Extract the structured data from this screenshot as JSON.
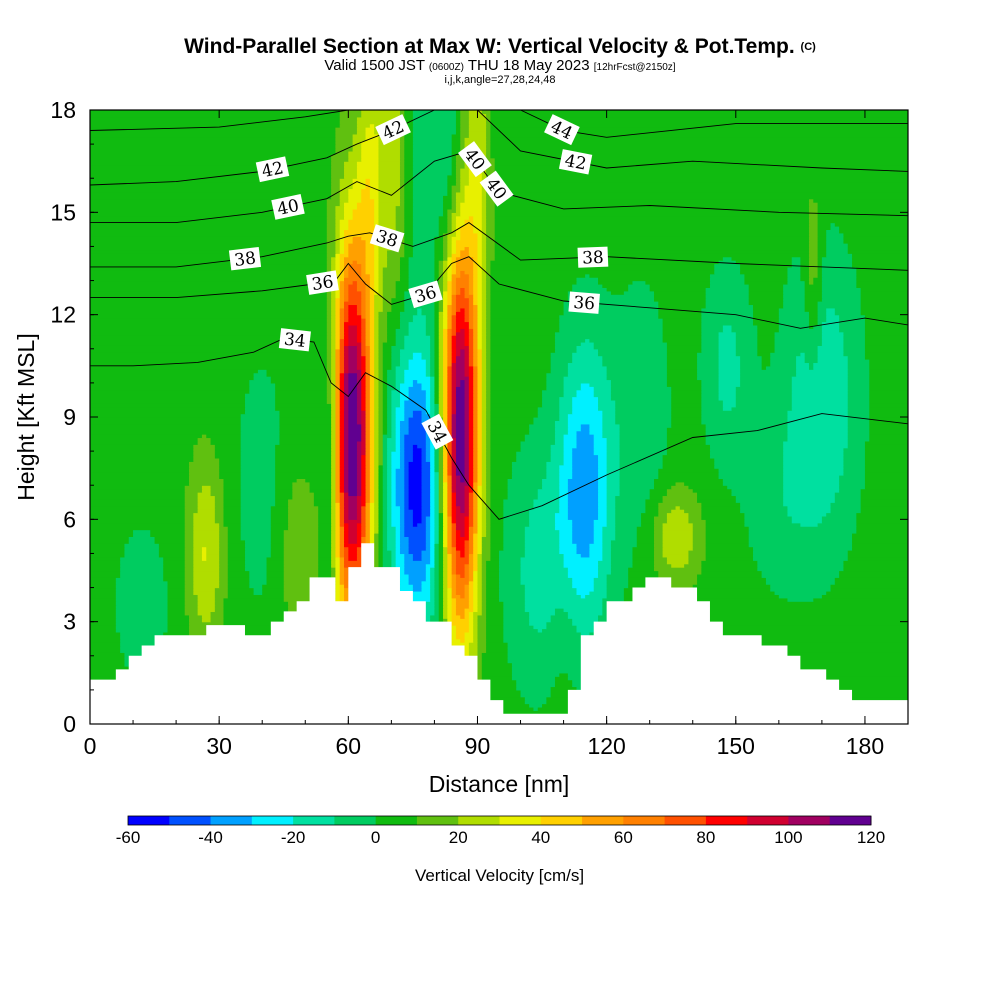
{
  "title": {
    "main": "Wind-Parallel Section at Max W: Vertical Velocity & Pot.Temp.",
    "main_mark": "(C)",
    "valid_a": "Valid 1500 JST",
    "valid_utc": "(0600Z)",
    "valid_b": "THU 18 May 2023",
    "fcst": "[12hrFcst@2150z]",
    "indices": "i,j,k,angle=27,28,24,48"
  },
  "chart_data": {
    "type": "heatmap",
    "xlabel": "Distance [nm]",
    "ylabel": "Height [Kft MSL]",
    "xlim": [
      0,
      190
    ],
    "ylim": [
      0,
      18
    ],
    "xticks": [
      "0",
      "30",
      "60",
      "90",
      "120",
      "150",
      "180"
    ],
    "xtick_values": [
      0,
      30,
      60,
      90,
      120,
      150,
      180
    ],
    "yticks": [
      "0",
      "3",
      "6",
      "9",
      "12",
      "15",
      "18"
    ],
    "ytick_values": [
      0,
      3,
      6,
      9,
      12,
      15,
      18
    ],
    "colorbar": {
      "label": "Vertical Velocity [cm/s]",
      "tick_labels": [
        "-60",
        "-40",
        "-20",
        "0",
        "20",
        "40",
        "60",
        "80",
        "100",
        "120"
      ],
      "tick_values": [
        -60,
        -40,
        -20,
        0,
        20,
        40,
        60,
        80,
        100,
        120
      ],
      "bins": [
        -60,
        -50,
        -40,
        -30,
        -20,
        -10,
        0,
        10,
        20,
        30,
        40,
        50,
        60,
        70,
        80,
        90,
        100,
        110,
        120
      ],
      "colors": [
        "#0000ff",
        "#0050ff",
        "#00a0ff",
        "#00f0ff",
        "#00e0a0",
        "#00cc60",
        "#10bb10",
        "#60c010",
        "#b0dd00",
        "#e8f000",
        "#ffd000",
        "#ffa000",
        "#ff8000",
        "#ff5000",
        "#ff0000",
        "#d00030",
        "#a00060",
        "#600090"
      ]
    },
    "terrain_profile": {
      "distance_nm": [
        0,
        6,
        6,
        9,
        9,
        12,
        12,
        15,
        15,
        21,
        21,
        27,
        27,
        36,
        36,
        42,
        42,
        45,
        45,
        48,
        48,
        51,
        51,
        54,
        54,
        57,
        57,
        60,
        60,
        63,
        63,
        66,
        66,
        72,
        72,
        75,
        75,
        78,
        78,
        81,
        81,
        84,
        84,
        87,
        87,
        90,
        90,
        93,
        93,
        96,
        96,
        99,
        99,
        111,
        111,
        114,
        114,
        117,
        117,
        120,
        120,
        126,
        126,
        129,
        129,
        135,
        135,
        141,
        141,
        144,
        144,
        147,
        147,
        150,
        150,
        156,
        156,
        162,
        162,
        165,
        165,
        171,
        171,
        174,
        174,
        177,
        177,
        180,
        180,
        190
      ],
      "height_kft": [
        1.3,
        1.3,
        1.6,
        1.6,
        2.0,
        2.0,
        2.3,
        2.3,
        2.6,
        2.6,
        2.6,
        2.6,
        2.9,
        2.9,
        2.6,
        2.6,
        3.0,
        3.0,
        3.3,
        3.3,
        3.6,
        3.6,
        4.3,
        4.3,
        4.3,
        4.3,
        3.6,
        3.6,
        4.6,
        4.6,
        5.3,
        5.3,
        4.6,
        4.6,
        3.9,
        3.9,
        3.6,
        3.6,
        3.0,
        3.0,
        3.0,
        3.0,
        2.3,
        2.3,
        2.0,
        2.0,
        1.3,
        1.3,
        0.7,
        0.7,
        0.3,
        0.3,
        0.3,
        0.3,
        1.0,
        1.0,
        2.6,
        2.6,
        3.0,
        3.0,
        3.6,
        3.6,
        4.0,
        4.0,
        4.3,
        4.3,
        4.0,
        4.0,
        3.6,
        3.6,
        3.0,
        3.0,
        2.6,
        2.6,
        2.6,
        2.6,
        2.3,
        2.3,
        2.0,
        2.0,
        1.6,
        1.6,
        1.3,
        1.3,
        1.0,
        1.0,
        0.7,
        0.7,
        0.7,
        0.7
      ]
    },
    "velocity_field": [
      {
        "x": 61,
        "y": 8.5,
        "w": 118,
        "sx": 3.2,
        "sy": 4.0
      },
      {
        "x": 86,
        "y": 8.5,
        "w": 118,
        "sx": 3.0,
        "sy": 4.0
      },
      {
        "x": 76,
        "y": 7.0,
        "w": -60,
        "sx": 4.5,
        "sy": 3.0
      },
      {
        "x": 56,
        "y": 8.0,
        "w": -25,
        "sx": 1.4,
        "sy": 3.0
      },
      {
        "x": 75,
        "y": 16.5,
        "w": -18,
        "sx": 3.5,
        "sy": 2.5
      },
      {
        "x": 83,
        "y": 16.5,
        "w": -18,
        "sx": 2.5,
        "sy": 2.5
      },
      {
        "x": 71,
        "y": 16.5,
        "w": 28,
        "sx": 3.0,
        "sy": 3.0
      },
      {
        "x": 65,
        "y": 16.0,
        "w": 22,
        "sx": 2.0,
        "sy": 2.5
      },
      {
        "x": 90,
        "y": 16.5,
        "w": 20,
        "sx": 2.0,
        "sy": 3.0
      },
      {
        "x": 115,
        "y": 7.0,
        "w": -40,
        "sx": 4.5,
        "sy": 3.0
      },
      {
        "x": 105,
        "y": 4.5,
        "w": -20,
        "sx": 6.0,
        "sy": 2.5
      },
      {
        "x": 128,
        "y": 9.0,
        "w": -12,
        "sx": 5.0,
        "sy": 3.0
      },
      {
        "x": 148,
        "y": 10.5,
        "w": -18,
        "sx": 4.0,
        "sy": 2.0
      },
      {
        "x": 170,
        "y": 9.5,
        "w": -25,
        "sx": 6.0,
        "sy": 3.0
      },
      {
        "x": 40,
        "y": 7.0,
        "w": -8,
        "sx": 6.0,
        "sy": 3.5
      },
      {
        "x": 27,
        "y": 5.0,
        "w": 26,
        "sx": 3.0,
        "sy": 2.0
      },
      {
        "x": 12,
        "y": 3.5,
        "w": -15,
        "sx": 4.0,
        "sy": 1.5
      },
      {
        "x": 48,
        "y": 5.0,
        "w": 15,
        "sx": 3.0,
        "sy": 2.0
      },
      {
        "x": 136,
        "y": 5.5,
        "w": 25,
        "sx": 4.0,
        "sy": 1.0
      },
      {
        "x": 168,
        "y": 13.0,
        "w": 18,
        "sx": 1.5,
        "sy": 2.0
      },
      {
        "x": 110,
        "y": 3.0,
        "w": 8,
        "sx": 3.0,
        "sy": 2.0
      },
      {
        "x": 160,
        "y": 6.5,
        "w": -10,
        "sx": 6.0,
        "sy": 2.0
      }
    ],
    "theta_contours": [
      {
        "label": "34",
        "x": [
          0,
          10,
          25,
          38,
          45,
          52,
          56,
          60,
          64,
          70,
          78,
          84,
          88,
          95,
          105,
          120,
          140,
          155,
          170,
          190
        ],
        "y": [
          10.5,
          10.5,
          10.6,
          10.9,
          11.3,
          11.2,
          10.0,
          9.6,
          10.3,
          9.9,
          9.2,
          7.8,
          7.0,
          6.0,
          6.4,
          7.3,
          8.4,
          8.6,
          9.1,
          8.8
        ]
      },
      {
        "label": "36",
        "x": [
          0,
          20,
          40,
          52,
          57,
          60,
          64,
          70,
          78,
          84,
          88,
          95,
          110,
          130,
          150,
          165,
          180,
          190
        ],
        "y": [
          12.5,
          12.5,
          12.7,
          12.9,
          13.0,
          13.5,
          12.9,
          12.3,
          12.6,
          13.5,
          13.7,
          12.9,
          12.4,
          12.2,
          12.0,
          11.6,
          11.9,
          11.7
        ]
      },
      {
        "label": "38",
        "x": [
          0,
          20,
          40,
          55,
          60,
          65,
          75,
          84,
          88,
          100,
          120,
          150,
          190
        ],
        "y": [
          13.4,
          13.4,
          13.7,
          14.1,
          14.3,
          14.4,
          14.0,
          14.4,
          14.7,
          13.6,
          13.7,
          13.5,
          13.3
        ]
      },
      {
        "label": "40",
        "x": [
          0,
          20,
          40,
          55,
          62,
          70,
          80,
          88,
          95,
          110,
          130,
          160,
          190
        ],
        "y": [
          14.7,
          14.7,
          15.0,
          15.4,
          15.9,
          15.5,
          16.5,
          16.8,
          15.6,
          15.1,
          15.2,
          15.0,
          14.9
        ]
      },
      {
        "label": "42",
        "x": [
          0,
          20,
          40,
          55,
          62,
          70,
          80,
          90,
          100,
          120,
          140,
          170,
          190
        ],
        "y": [
          15.8,
          15.9,
          16.2,
          16.6,
          17.0,
          17.4,
          18.0,
          18.0,
          16.8,
          16.3,
          16.5,
          16.3,
          16.2
        ]
      },
      {
        "label": "44",
        "x": [
          0,
          30,
          50,
          60,
          100,
          110,
          120,
          150,
          190
        ],
        "y": [
          17.4,
          17.5,
          17.8,
          18.0,
          18.0,
          17.4,
          17.2,
          17.6,
          17.6
        ]
      }
    ]
  }
}
